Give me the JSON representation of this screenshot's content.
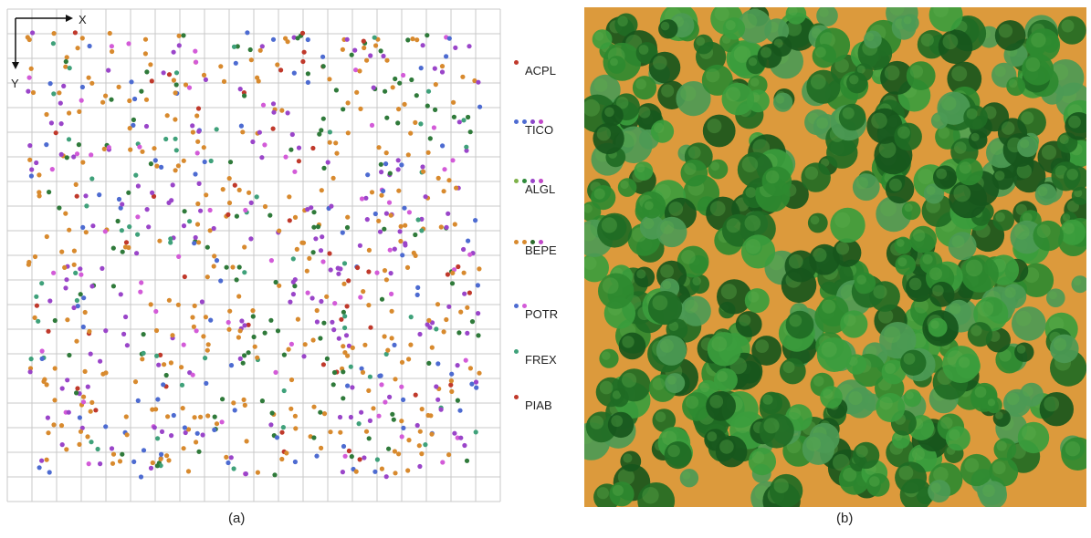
{
  "axis_labels": {
    "x": "X",
    "y": "Y"
  },
  "legend": [
    {
      "label": "ACPL",
      "dots": [
        "#c0392b"
      ]
    },
    {
      "label": "TICO",
      "dots": [
        "#4d6bd1",
        "#4d6bd1",
        "#8a47c9",
        "#c048c8"
      ]
    },
    {
      "label": "ALGL",
      "dots": [
        "#7fb24a",
        "#2f8a3b",
        "#9a45c9",
        "#c048c8"
      ]
    },
    {
      "label": "BEPE",
      "dots": [
        "#d88a2e",
        "#d88a2e",
        "#2c6a2c",
        "#c048c8"
      ]
    },
    {
      "label": "POTR",
      "dots": [
        "#4d6bd1",
        "#d35bd8"
      ]
    },
    {
      "label": "FREX",
      "dots": [
        "#3fa17a"
      ]
    },
    {
      "label": "PIAB",
      "dots": [
        "#c0392b"
      ]
    }
  ],
  "species_colors": [
    "#d88a2e",
    "#9a45c9",
    "#2f7a3a",
    "#4d6bd1",
    "#3fa17a",
    "#c0392b",
    "#d35bd8"
  ],
  "captions": {
    "a": "(a)",
    "b": "(b)"
  },
  "render": {
    "ground_color": "#dc9a3c",
    "canopy_colors": [
      "#1f6b24",
      "#2e8a30",
      "#3b9d3d",
      "#17561c",
      "#4c9a55"
    ]
  }
}
